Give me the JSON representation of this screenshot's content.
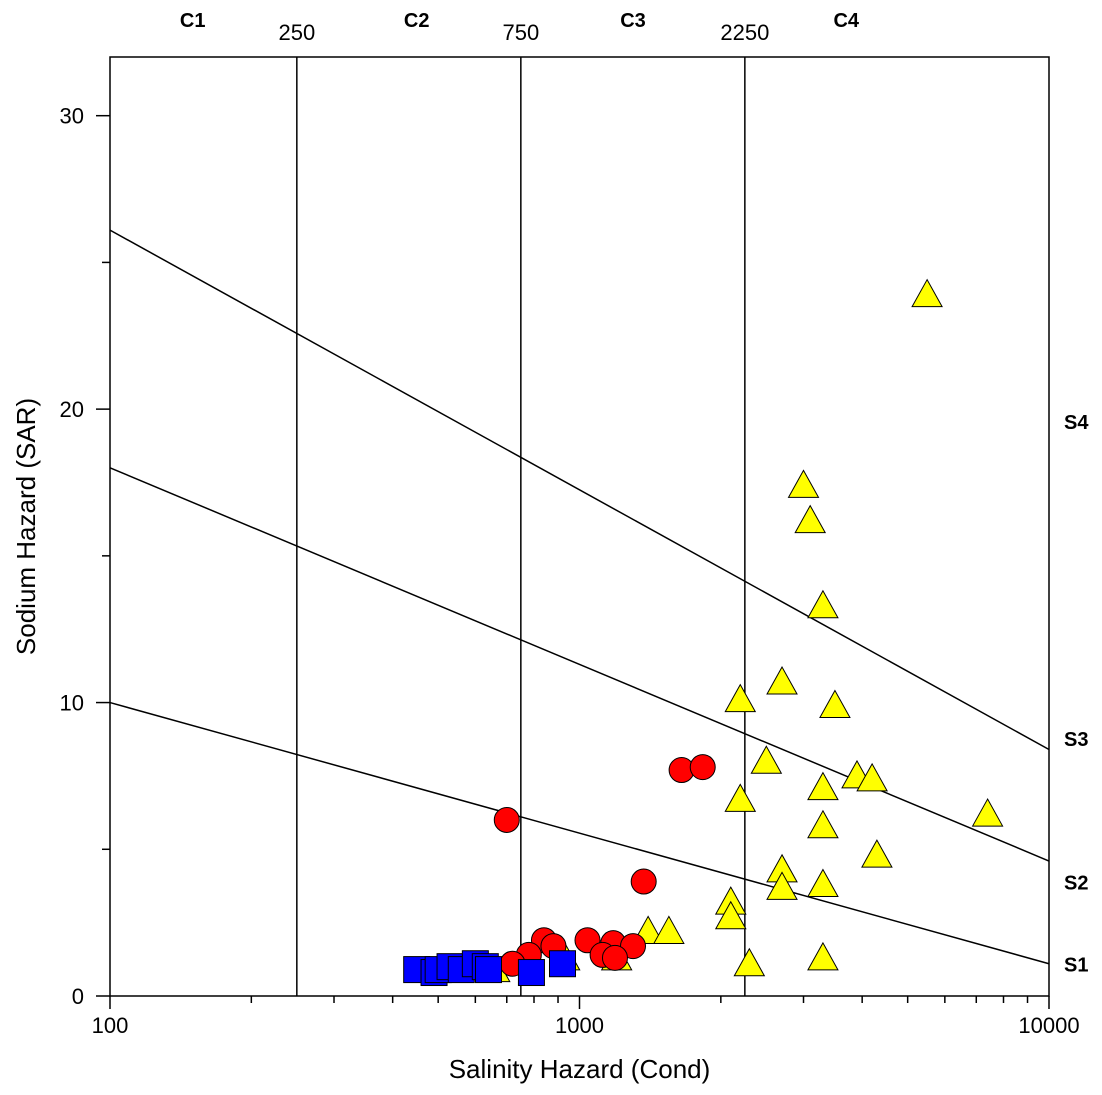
{
  "chart_data": {
    "type": "scatter",
    "x_scale": "log",
    "xlabel": "Salinity Hazard (Cond)",
    "ylabel": "Sodium Hazard (SAR)",
    "xlim": [
      100,
      10000
    ],
    "ylim": [
      0,
      32
    ],
    "x_ticks": [
      {
        "value": 100,
        "label": "100"
      },
      {
        "value": 1000,
        "label": "1000"
      },
      {
        "value": 10000,
        "label": "10000"
      }
    ],
    "y_ticks": [
      {
        "value": 0,
        "label": "0"
      },
      {
        "value": 10,
        "label": "10"
      },
      {
        "value": 20,
        "label": "20"
      },
      {
        "value": 30,
        "label": "30"
      }
    ],
    "salinity_boundaries": [
      {
        "value": 250,
        "label": "250"
      },
      {
        "value": 750,
        "label": "750"
      },
      {
        "value": 2250,
        "label": "2250"
      }
    ],
    "salinity_classes": [
      {
        "label": "C1",
        "x": 150
      },
      {
        "label": "C2",
        "x": 450
      },
      {
        "label": "C3",
        "x": 1300
      },
      {
        "label": "C4",
        "x": 3700
      }
    ],
    "sodium_classes": [
      {
        "label": "S1",
        "y": 1.1
      },
      {
        "label": "S2",
        "y": 3.9
      },
      {
        "label": "S3",
        "y": 8.8
      },
      {
        "label": "S4",
        "y": 19.6
      }
    ],
    "sodium_lines": [
      {
        "x": [
          100,
          10000
        ],
        "y": [
          10,
          1.1
        ]
      },
      {
        "x": [
          100,
          10000
        ],
        "y": [
          18,
          4.6
        ]
      },
      {
        "x": [
          100,
          10000
        ],
        "y": [
          26.1,
          8.4
        ]
      }
    ],
    "series": [
      {
        "marker": "triangle",
        "color": "#ffff00",
        "points": [
          [
            5500,
            23.9
          ],
          [
            3000,
            17.4
          ],
          [
            3100,
            16.2
          ],
          [
            3300,
            13.3
          ],
          [
            2700,
            10.7
          ],
          [
            2200,
            10.1
          ],
          [
            3500,
            9.9
          ],
          [
            2500,
            8.0
          ],
          [
            3900,
            7.5
          ],
          [
            4200,
            7.4
          ],
          [
            3300,
            7.1
          ],
          [
            2200,
            6.7
          ],
          [
            7400,
            6.2
          ],
          [
            3300,
            5.8
          ],
          [
            4300,
            4.8
          ],
          [
            2700,
            4.3
          ],
          [
            2700,
            3.7
          ],
          [
            3300,
            3.8
          ],
          [
            2100,
            3.2
          ],
          [
            2100,
            2.7
          ],
          [
            1400,
            2.2
          ],
          [
            1550,
            2.2
          ],
          [
            2300,
            1.1
          ],
          [
            3300,
            1.3
          ],
          [
            1200,
            1.3
          ],
          [
            930,
            1.3
          ],
          [
            660,
            0.9
          ]
        ]
      },
      {
        "marker": "circle",
        "color": "#ff0000",
        "points": [
          [
            1650,
            7.7
          ],
          [
            1830,
            7.8
          ],
          [
            700,
            6.0
          ],
          [
            1370,
            3.9
          ],
          [
            1040,
            1.9
          ],
          [
            840,
            1.9
          ],
          [
            880,
            1.7
          ],
          [
            1180,
            1.8
          ],
          [
            1300,
            1.7
          ],
          [
            1120,
            1.4
          ],
          [
            1190,
            1.3
          ],
          [
            780,
            1.4
          ],
          [
            720,
            1.1
          ]
        ]
      },
      {
        "marker": "square",
        "color": "#0000ff",
        "points": [
          [
            450,
            0.9
          ],
          [
            490,
            0.8
          ],
          [
            500,
            0.9
          ],
          [
            530,
            1.0
          ],
          [
            560,
            0.9
          ],
          [
            600,
            1.1
          ],
          [
            630,
            1.0
          ],
          [
            640,
            0.9
          ],
          [
            790,
            0.8
          ],
          [
            920,
            1.1
          ]
        ]
      }
    ]
  }
}
